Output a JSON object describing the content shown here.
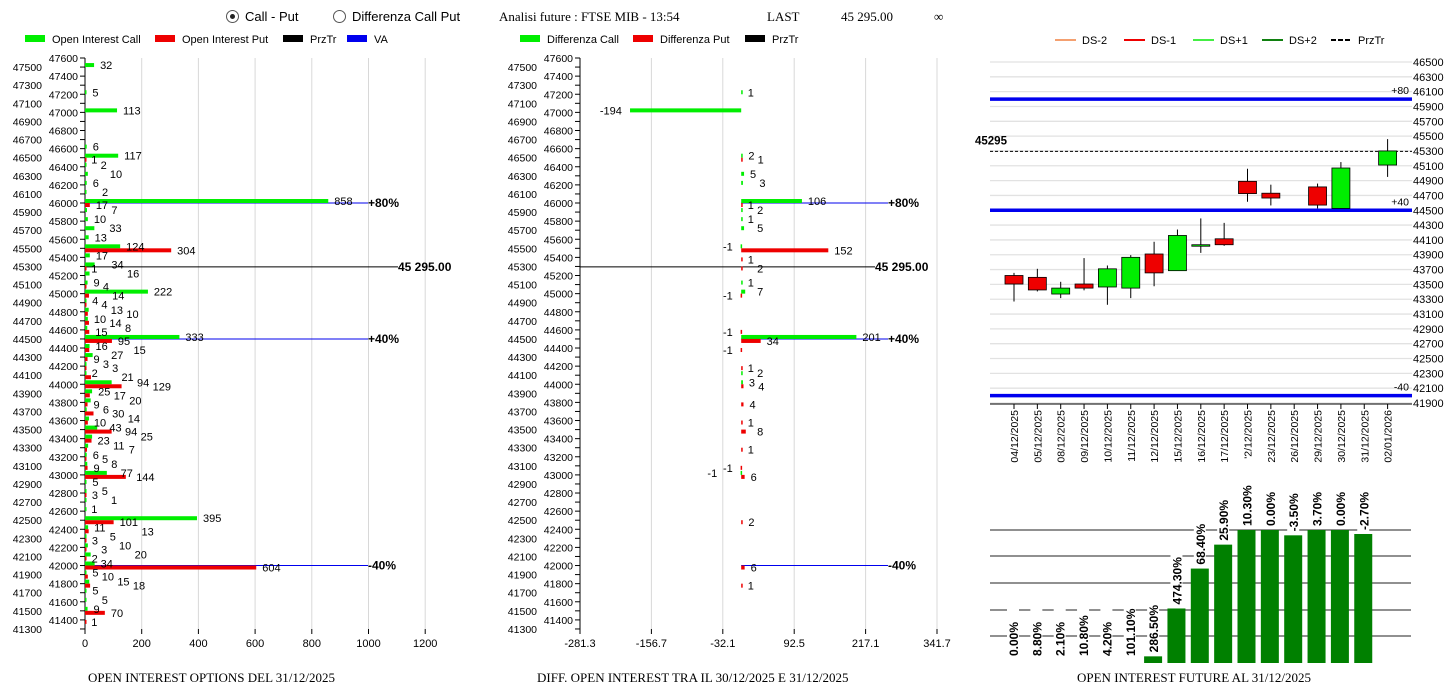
{
  "header": {
    "mode_options": [
      "Call - Put",
      "Differenza Call Put"
    ],
    "mode_selected": "Call - Put",
    "title": "Analisi future : FTSE MIB - 13:54",
    "last_label": "LAST",
    "last_value": "45 295.00",
    "infinity": "∞"
  },
  "colors": {
    "call": "#00ee00",
    "put": "#ee0000",
    "prztr": "#000000",
    "va": "#0000ee",
    "oi_bar": "#008000",
    "candle_up": "#00ee00",
    "candle_down": "#ee0000"
  },
  "chart_data": [
    {
      "type": "bar",
      "orientation": "horizontal",
      "title": "OPEN INTEREST OPTIONS DEL 31/12/2025",
      "legend": [
        "Open Interest Call",
        "Open Interest Put",
        "PrzTr",
        "VA"
      ],
      "ylim": [
        41300,
        47600
      ],
      "xlim": [
        0,
        1300
      ],
      "x_ticks": [
        0,
        200,
        400,
        600,
        800,
        1000,
        1200
      ],
      "grid": true,
      "prztr": {
        "value": 45295,
        "label": "45 295.00"
      },
      "va_lines": [
        {
          "strike": 46000,
          "label": "+80%"
        },
        {
          "strike": 44500,
          "label": "+40%"
        },
        {
          "strike": 42000,
          "label": "-40%"
        }
      ],
      "call": [
        [
          47500,
          32
        ],
        [
          47200,
          5
        ],
        [
          47000,
          113
        ],
        [
          46600,
          6
        ],
        [
          46500,
          117
        ],
        [
          46400,
          2
        ],
        [
          46300,
          10
        ],
        [
          46200,
          6
        ],
        [
          46100,
          2
        ],
        [
          46000,
          858
        ],
        [
          45900,
          7
        ],
        [
          45800,
          10
        ],
        [
          45700,
          33
        ],
        [
          45600,
          13
        ],
        [
          45500,
          124
        ],
        [
          45400,
          17
        ],
        [
          45300,
          34
        ],
        [
          45200,
          16
        ],
        [
          45100,
          9
        ],
        [
          45000,
          222
        ],
        [
          44900,
          4
        ],
        [
          44800,
          13
        ],
        [
          44700,
          10
        ],
        [
          44600,
          8
        ],
        [
          44500,
          333
        ],
        [
          44400,
          16
        ],
        [
          44300,
          27
        ],
        [
          44200,
          3
        ],
        [
          44100,
          2
        ],
        [
          44000,
          94
        ],
        [
          43900,
          25
        ],
        [
          43800,
          20
        ],
        [
          43700,
          6
        ],
        [
          43600,
          14
        ],
        [
          43500,
          43
        ],
        [
          43400,
          25
        ],
        [
          43300,
          11
        ],
        [
          43200,
          6
        ],
        [
          43100,
          8
        ],
        [
          43000,
          77
        ],
        [
          42900,
          5
        ],
        [
          42800,
          5
        ],
        [
          42700,
          1
        ],
        [
          42600,
          1
        ],
        [
          42500,
          395
        ],
        [
          42400,
          11
        ],
        [
          42300,
          5
        ],
        [
          42200,
          10
        ],
        [
          42100,
          20
        ],
        [
          42000,
          34
        ],
        [
          41900,
          5
        ],
        [
          41800,
          15
        ],
        [
          41700,
          5
        ],
        [
          41600,
          5
        ],
        [
          41500,
          9
        ]
      ],
      "put": [
        [
          46500,
          1
        ],
        [
          46000,
          17
        ],
        [
          45500,
          304
        ],
        [
          45300,
          1
        ],
        [
          45100,
          4
        ],
        [
          45000,
          14
        ],
        [
          44900,
          4
        ],
        [
          44800,
          10
        ],
        [
          44700,
          14
        ],
        [
          44600,
          15
        ],
        [
          44500,
          95
        ],
        [
          44400,
          15
        ],
        [
          44300,
          9
        ],
        [
          44200,
          3
        ],
        [
          44100,
          21
        ],
        [
          44000,
          129
        ],
        [
          43900,
          17
        ],
        [
          43800,
          9
        ],
        [
          43700,
          30
        ],
        [
          43600,
          10
        ],
        [
          43500,
          94
        ],
        [
          43400,
          23
        ],
        [
          43300,
          7
        ],
        [
          43200,
          5
        ],
        [
          43100,
          9
        ],
        [
          43000,
          144
        ],
        [
          42800,
          3
        ],
        [
          42500,
          101
        ],
        [
          42400,
          13
        ],
        [
          42300,
          3
        ],
        [
          42200,
          3
        ],
        [
          42100,
          2
        ],
        [
          42000,
          604
        ],
        [
          41900,
          10
        ],
        [
          41800,
          18
        ],
        [
          41500,
          70
        ],
        [
          41400,
          1
        ]
      ]
    },
    {
      "type": "bar",
      "orientation": "horizontal",
      "title": "DIFF. OPEN INTEREST TRA IL 30/12/2025 E 31/12/2025",
      "legend": [
        "Differenza Call",
        "Differenza Put",
        "PrzTr"
      ],
      "ylim": [
        41300,
        47600
      ],
      "xlim": [
        -281.3,
        341.7
      ],
      "x_ticks": [
        "-281.3",
        "-156.7",
        "-32.1",
        "92.5",
        "217.1",
        "341.7"
      ],
      "grid": true,
      "prztr": {
        "value": 45295,
        "label": "45 295.00"
      },
      "va_lines": [
        {
          "strike": 46000,
          "label": "+80%"
        },
        {
          "strike": 44500,
          "label": "+40%"
        },
        {
          "strike": 42000,
          "label": "-40%"
        }
      ],
      "call": [
        [
          47200,
          1
        ],
        [
          47000,
          -194
        ],
        [
          46500,
          2
        ],
        [
          46300,
          5
        ],
        [
          46200,
          3
        ],
        [
          46000,
          106
        ],
        [
          45900,
          2
        ],
        [
          45800,
          1
        ],
        [
          45700,
          5
        ],
        [
          45500,
          -1
        ],
        [
          45100,
          1
        ],
        [
          45000,
          7
        ],
        [
          44500,
          201
        ],
        [
          44100,
          2
        ],
        [
          44000,
          3
        ],
        [
          43000,
          -1
        ]
      ],
      "put": [
        [
          46500,
          1
        ],
        [
          46000,
          1
        ],
        [
          45500,
          152
        ],
        [
          45400,
          1
        ],
        [
          45300,
          2
        ],
        [
          45000,
          -1
        ],
        [
          44600,
          -1
        ],
        [
          44500,
          34
        ],
        [
          44400,
          -1
        ],
        [
          44200,
          1
        ],
        [
          44000,
          4
        ],
        [
          43800,
          4
        ],
        [
          43600,
          1
        ],
        [
          43500,
          8
        ],
        [
          43300,
          1
        ],
        [
          43100,
          -1
        ],
        [
          43000,
          6
        ],
        [
          42500,
          2
        ],
        [
          42000,
          6
        ],
        [
          41800,
          1
        ]
      ]
    },
    {
      "type": "candlestick",
      "legend": [
        "DS-2",
        "DS-1",
        "DS+1",
        "DS+2",
        "PrzTr"
      ],
      "legend_colors": [
        "#f4a070",
        "#ee0000",
        "#44ee44",
        "#108010",
        "#000000"
      ],
      "ylim": [
        41900,
        46500
      ],
      "y_ticks": [
        46500,
        46300,
        46100,
        45900,
        45700,
        45500,
        45300,
        45100,
        44900,
        44700,
        44500,
        44300,
        44100,
        43900,
        43700,
        43500,
        43300,
        43100,
        42900,
        42700,
        42500,
        42300,
        42100,
        41900
      ],
      "grid": true,
      "prztr": {
        "value": 45295,
        "label": "45295"
      },
      "levels": [
        {
          "value": 46000,
          "label": "+80"
        },
        {
          "value": 44500,
          "label": "+40"
        },
        {
          "value": 42000,
          "label": "-40"
        }
      ],
      "dates": [
        "04/12/2025",
        "05/12/2025",
        "08/12/2025",
        "09/12/2025",
        "10/12/2025",
        "11/12/2025",
        "12/12/2025",
        "15/12/2025",
        "16/12/2025",
        "17/12/2025",
        "'2/12/2025",
        "23/12/2025",
        "26/12/2025",
        "29/12/2025",
        "30/12/2025",
        "31/12/2025",
        "02/01/2026"
      ],
      "ohlc": [
        [
          43620,
          43655,
          43270,
          43505
        ],
        [
          43595,
          43710,
          43405,
          43425
        ],
        [
          43370,
          43535,
          43315,
          43450
        ],
        [
          43505,
          43855,
          43420,
          43450
        ],
        [
          43465,
          43755,
          43225,
          43710
        ],
        [
          43450,
          43895,
          43315,
          43865
        ],
        [
          43910,
          44075,
          43475,
          43655
        ],
        [
          43685,
          44240,
          43685,
          44160
        ],
        [
          44035,
          44390,
          43925,
          44035
        ],
        [
          44115,
          44330,
          44020,
          44035
        ],
        [
          44890,
          45060,
          44615,
          44725
        ],
        [
          44730,
          44845,
          44565,
          44665
        ],
        null,
        [
          44815,
          44860,
          44525,
          44570
        ],
        [
          44525,
          45150,
          44525,
          45070
        ],
        null,
        [
          45110,
          45460,
          44950,
          45300
        ]
      ]
    },
    {
      "type": "bar",
      "title": "OPEN INTEREST FUTURE AL 31/12/2025",
      "labels": [
        "0.00%",
        "8.80%",
        "2.10%",
        "10.80%",
        "4.20%",
        "101.10%",
        "286.50%",
        "474.30%",
        "68.40%",
        "25.90%",
        "10.30%",
        "0.00%",
        "-3.50%",
        "3.70%",
        "0.00%",
        "-2.70%"
      ],
      "relative_level": [
        0,
        0,
        0,
        0,
        0,
        0,
        0.05,
        0.41,
        0.71,
        0.89,
        1.0,
        1.0,
        0.96,
        1.0,
        1.0,
        0.97
      ],
      "grid": true
    }
  ]
}
